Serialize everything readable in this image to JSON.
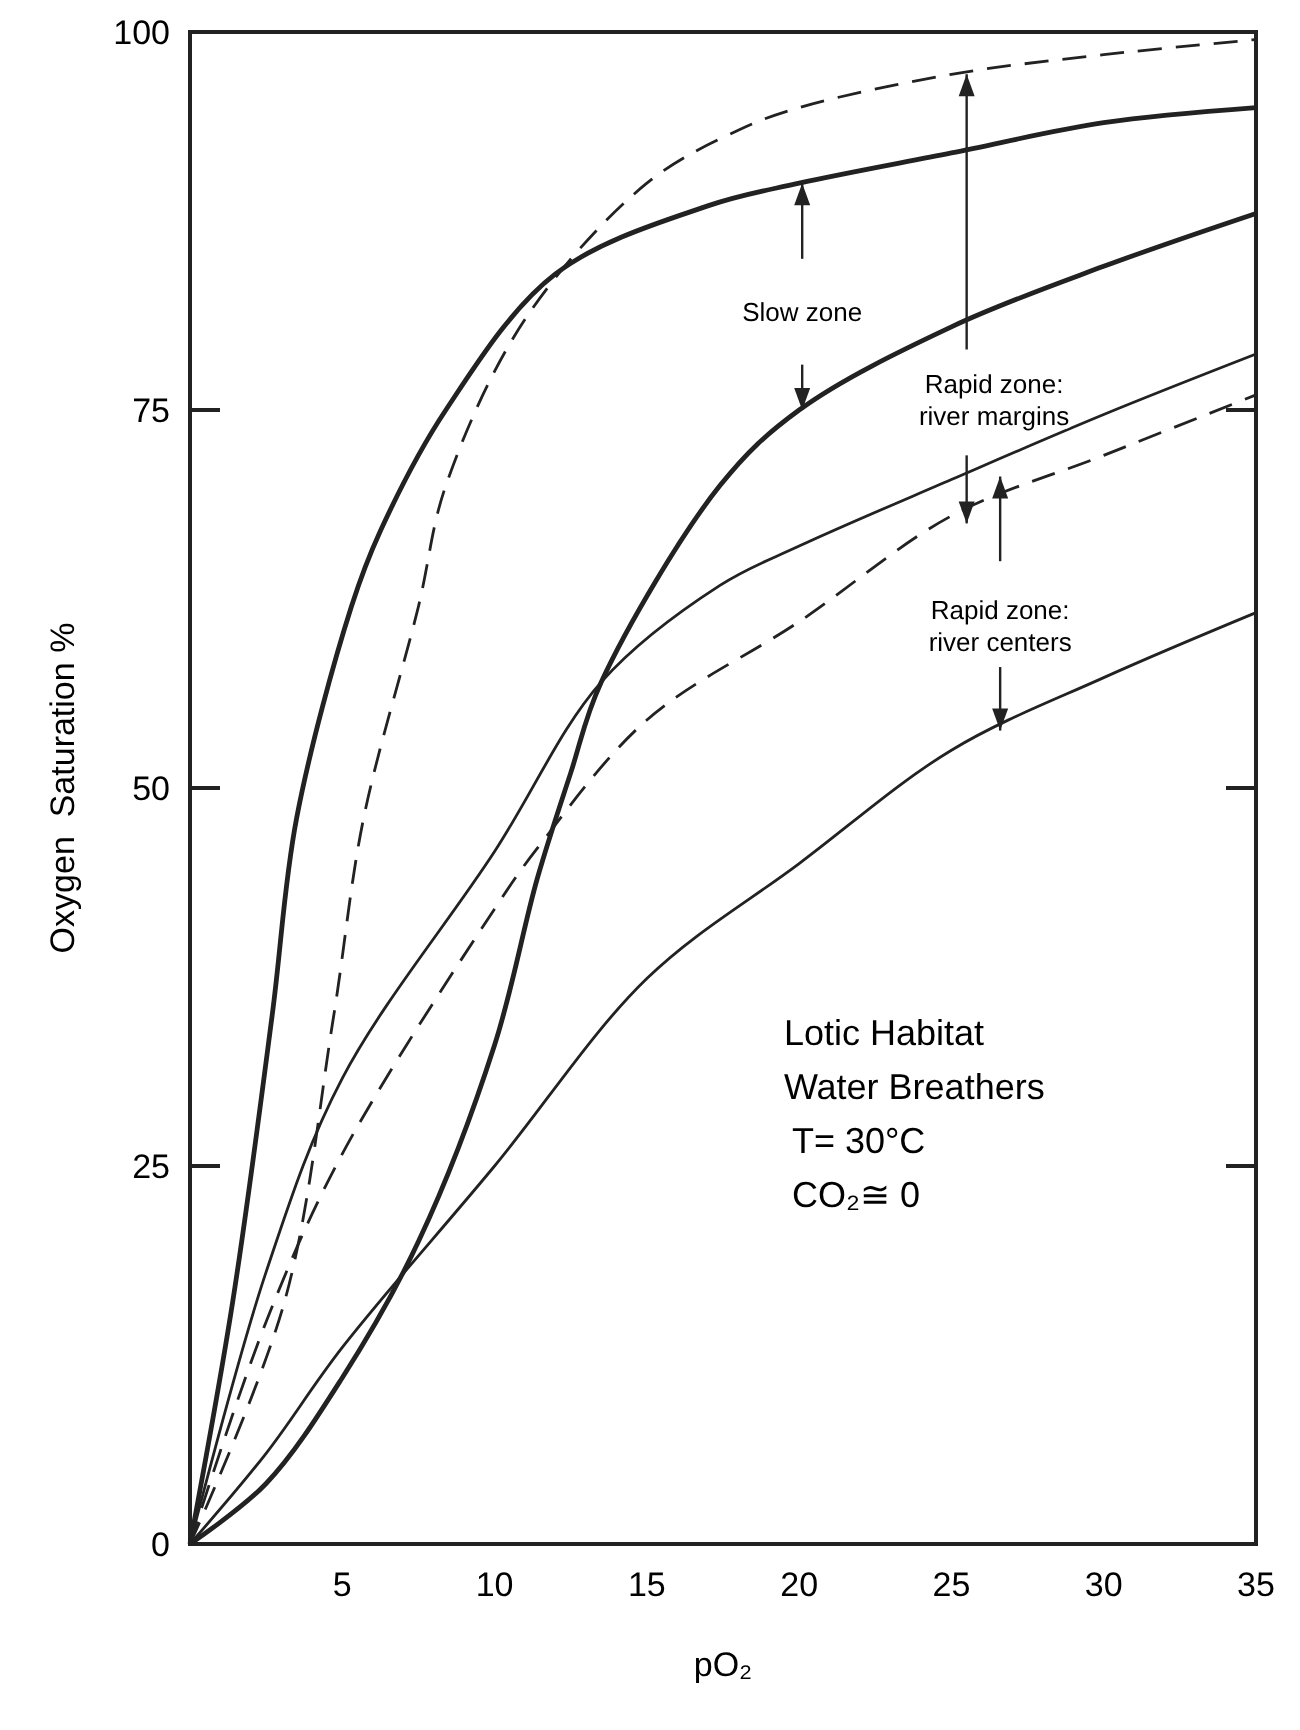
{
  "chart_data": {
    "type": "line",
    "xlabel": "pO₂",
    "ylabel": "Oxygen  Saturation %",
    "xlim": [
      0,
      35
    ],
    "ylim": [
      0,
      100
    ],
    "xticks": [
      5,
      10,
      15,
      20,
      25,
      30,
      35
    ],
    "yticks": [
      0,
      25,
      50,
      75,
      100
    ],
    "grid": false,
    "marker": "none",
    "series": [
      {
        "color": "#222222",
        "line_style": "solid",
        "x": [
          0,
          1.4,
          2.7,
          3.5,
          5.3,
          6.25,
          8.4,
          12,
          17,
          20,
          25,
          30,
          35
        ],
        "values": [
          0,
          16,
          35,
          48,
          62,
          67,
          75,
          84,
          88.5,
          90,
          92,
          94,
          95
        ]
      },
      {
        "color": "#222222",
        "line_style": "dashed",
        "x": [
          0,
          3.1,
          4.7,
          5.7,
          7.5,
          8.4,
          11,
          15,
          18,
          20,
          25,
          30,
          35
        ],
        "values": [
          0,
          16,
          34.7,
          48,
          62,
          70,
          81,
          90,
          93.5,
          95,
          97.2,
          98.5,
          99.5
        ]
      },
      {
        "color": "#222222",
        "line_style": "solid",
        "x": [
          0,
          2.5,
          5,
          7.5,
          10,
          11.4,
          12.5,
          13.5,
          17.4,
          20,
          25,
          30,
          35
        ],
        "values": [
          0,
          4,
          11,
          20,
          33,
          44,
          51,
          57,
          70,
          75,
          80.5,
          84.5,
          88
        ]
      },
      {
        "color": "#222222",
        "line_style": "solid",
        "x": [
          0,
          2.5,
          5,
          10,
          13.5,
          17.4,
          20,
          25,
          30,
          35
        ],
        "values": [
          0,
          18,
          30.8,
          45.8,
          57,
          63.4,
          66,
          70.4,
          74.7,
          78.7
        ]
      },
      {
        "color": "#222222",
        "line_style": "dashed",
        "x": [
          0,
          2.5,
          5,
          10,
          11.4,
          15,
          20,
          25,
          30,
          35
        ],
        "values": [
          0,
          14.7,
          25.8,
          42,
          46,
          54.5,
          61,
          68,
          72,
          76
        ]
      },
      {
        "color": "#222222",
        "line_style": "solid",
        "x": [
          0,
          2.5,
          5,
          10,
          15,
          20,
          25,
          30,
          35
        ],
        "values": [
          0,
          6,
          13,
          25,
          37.4,
          45,
          52.5,
          57.3,
          61.6
        ]
      }
    ],
    "annotations": [
      "Slow zone",
      {
        "text": "Rapid zone:\nriver margins",
        "x": 25.5,
        "y": 97.2
      },
      {
        "text": "Rapid zone:\nriver centers",
        "x": 26.6,
        "y": 53.8
      },
      "Lotic Habitat\nWater Breathers\nT= 30°C\nCO₂≅ 0"
    ]
  }
}
